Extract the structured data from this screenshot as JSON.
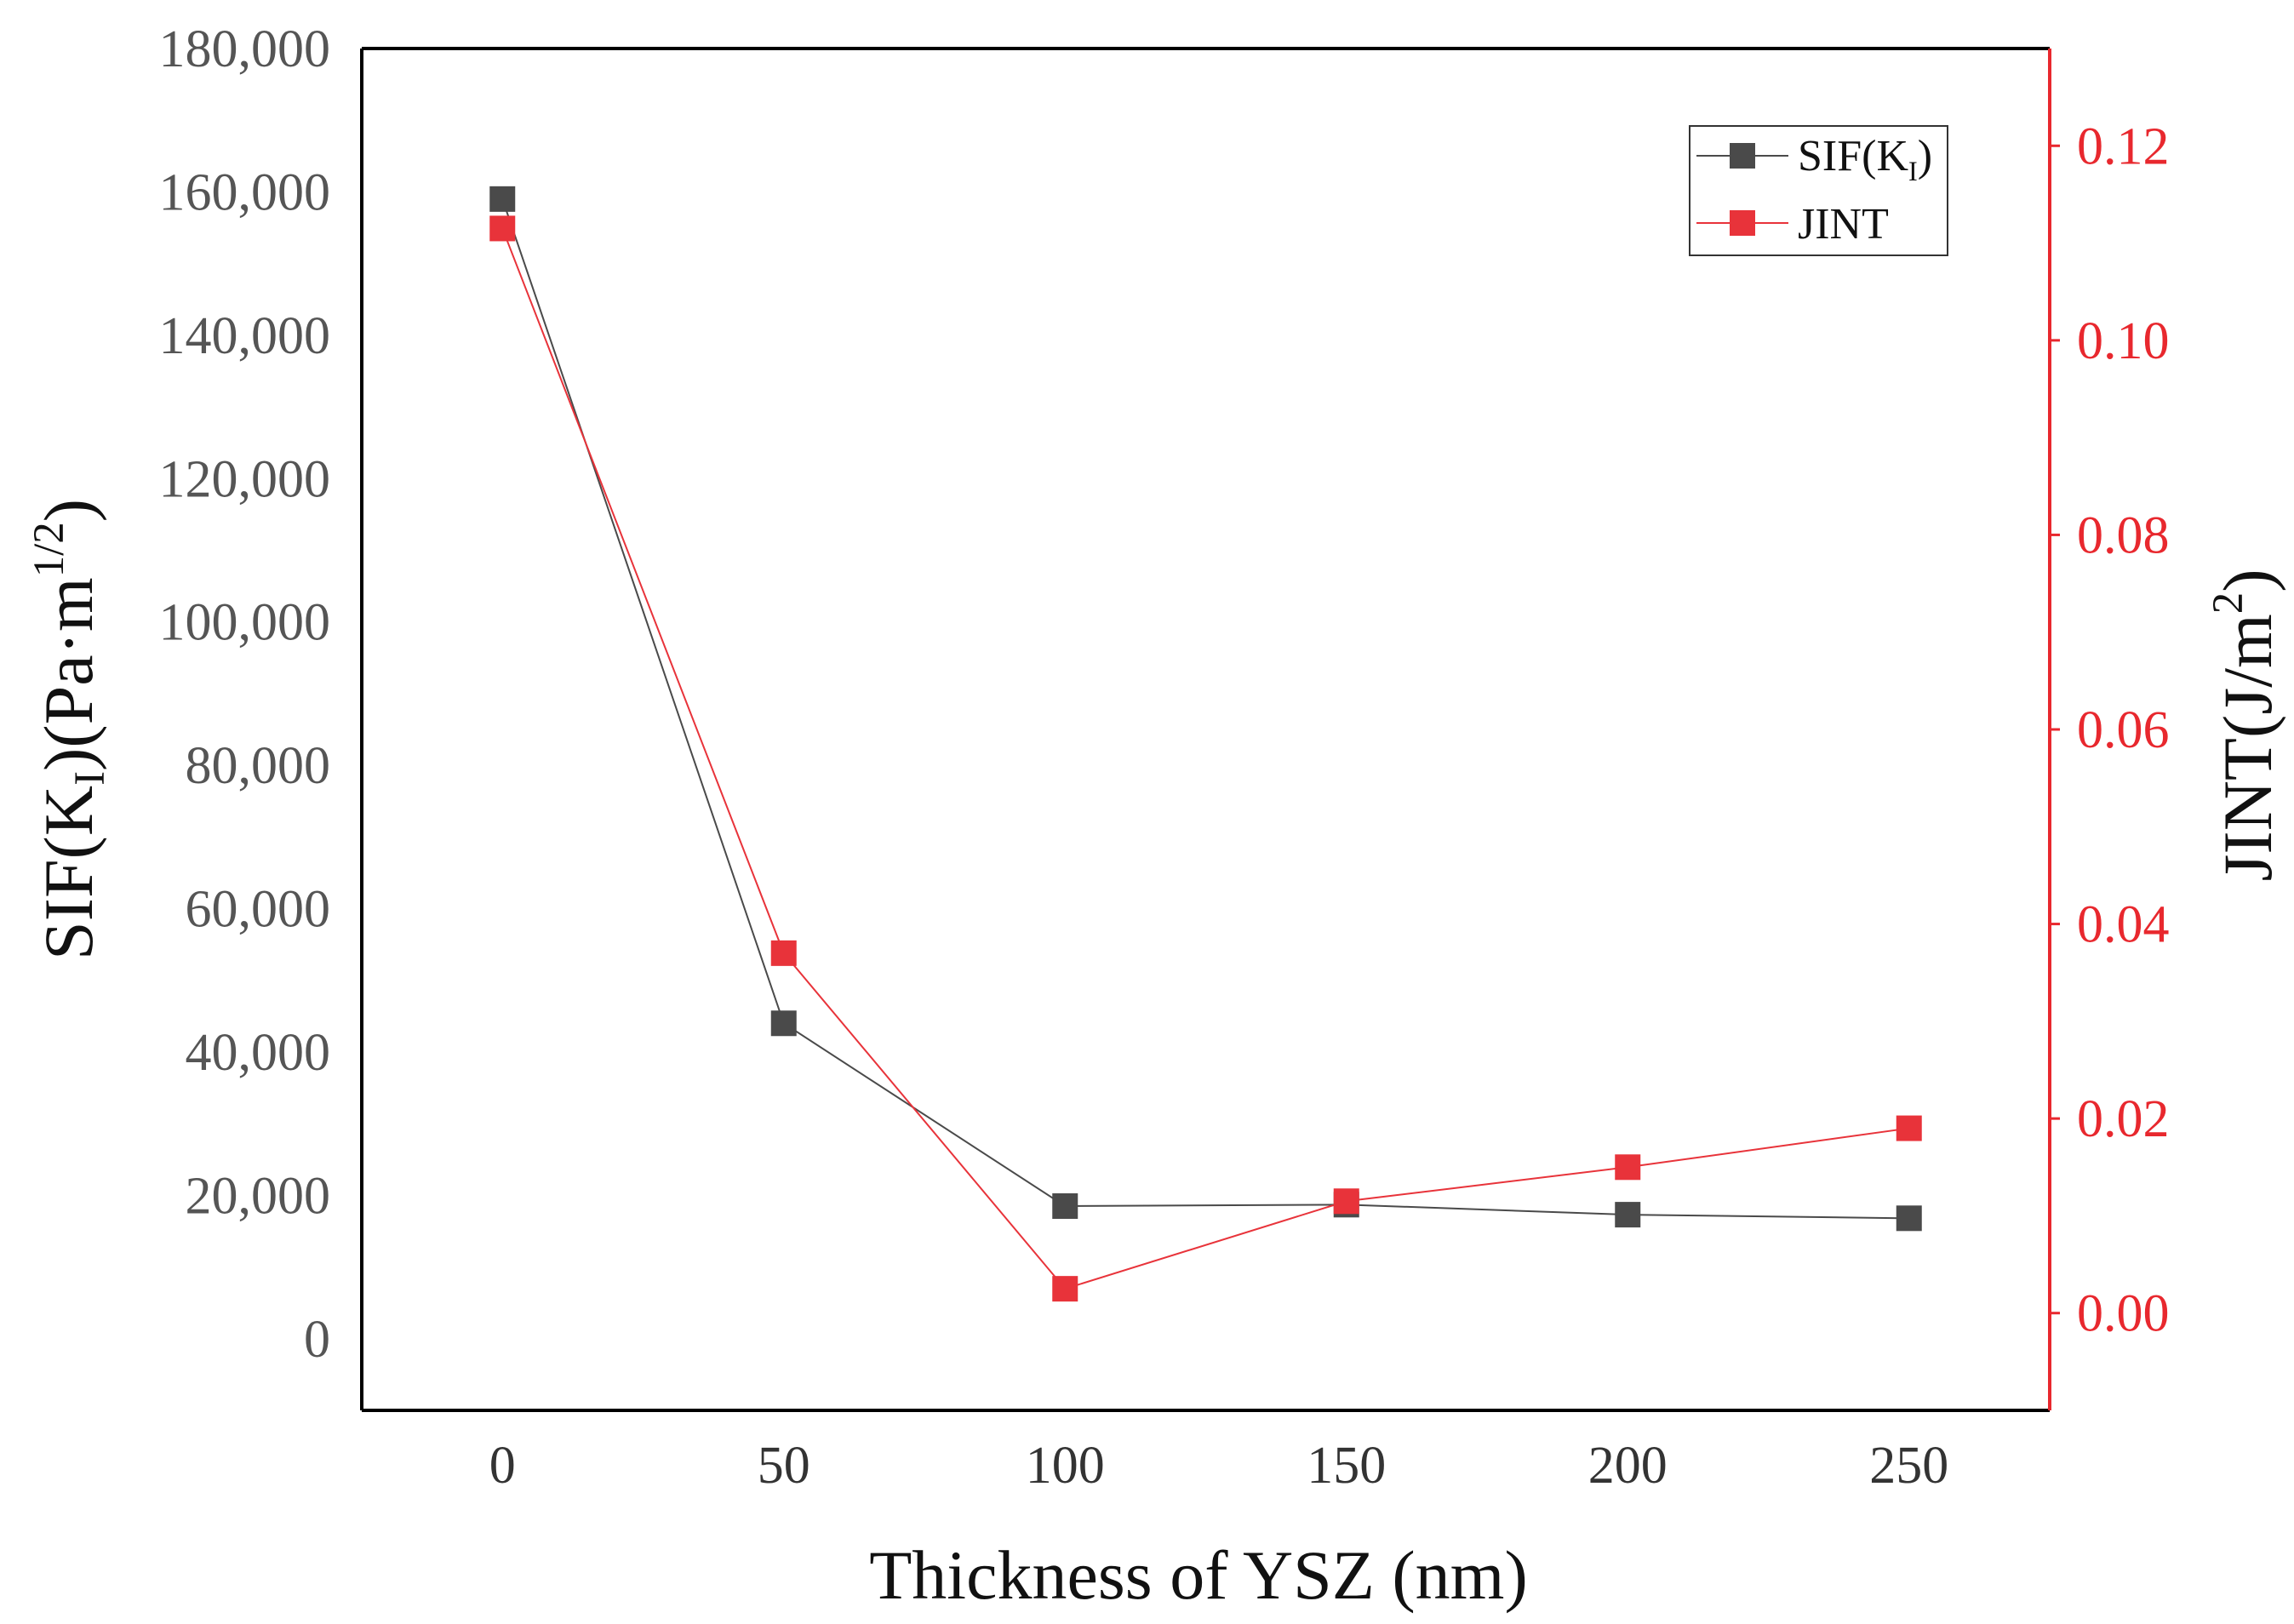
{
  "chart_data": {
    "type": "line",
    "xlabel": "Thickness of YSZ (nm)",
    "ylabel_left": {
      "main": "SIF(K",
      "sub": "I",
      "mid": ")(Pa·m",
      "sup": "1/2",
      "end": ")"
    },
    "ylabel_right": {
      "main": "JINT(J/m",
      "sup": "2",
      "end": ")"
    },
    "x": [
      0,
      50,
      100,
      150,
      200,
      250
    ],
    "x_ticks": [
      "0",
      "50",
      "100",
      "150",
      "200",
      "250"
    ],
    "xlim": [
      -25,
      275
    ],
    "ylim_left": [
      -10000,
      180000
    ],
    "ylim_right": [
      -0.01,
      0.13
    ],
    "y_ticks_left": [
      "0",
      "20,000",
      "40,000",
      "60,000",
      "80,000",
      "100,000",
      "120,000",
      "140,000",
      "160,000",
      "180,000"
    ],
    "y_ticks_left_values": [
      0,
      20000,
      40000,
      60000,
      80000,
      100000,
      120000,
      140000,
      160000,
      180000
    ],
    "y_ticks_right": [
      "0.00",
      "0.02",
      "0.04",
      "0.06",
      "0.08",
      "0.10",
      "0.12"
    ],
    "y_ticks_right_values": [
      0.0,
      0.02,
      0.04,
      0.06,
      0.08,
      0.1,
      0.12
    ],
    "series": [
      {
        "name": "SIF(KI)",
        "legend": {
          "main": "SIF(K",
          "sub": "I",
          "end": ")"
        },
        "axis": "left",
        "color": "#4a4a4a",
        "values": [
          159000,
          44000,
          18500,
          18700,
          17300,
          16800
        ]
      },
      {
        "name": "JINT",
        "legend": {
          "main": "JINT"
        },
        "axis": "right",
        "color": "#e8333a",
        "values": [
          0.1115,
          0.037,
          0.0025,
          0.0115,
          0.015,
          0.019
        ]
      }
    ],
    "legend_position": "top-right",
    "grid": false
  }
}
